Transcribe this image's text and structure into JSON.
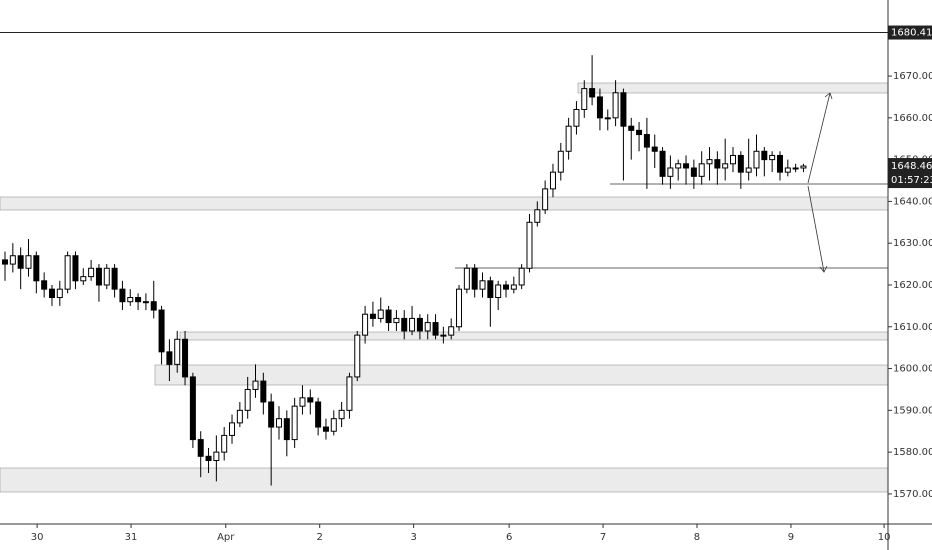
{
  "chart_data": {
    "type": "candlestick",
    "x": [
      0,
      1,
      2,
      3,
      4,
      5,
      6,
      7,
      8,
      9,
      10,
      11,
      12,
      13,
      14,
      15,
      16,
      17,
      18,
      19,
      20,
      21,
      22,
      23,
      24,
      25,
      26,
      27,
      28,
      29,
      30,
      31,
      32,
      33,
      34,
      35,
      36,
      37,
      38,
      39,
      40,
      41,
      42,
      43,
      44,
      45,
      46,
      47,
      48,
      49,
      50,
      51,
      52,
      53,
      54,
      55,
      56,
      57,
      58,
      59,
      60,
      61,
      62,
      63,
      64,
      65,
      66,
      67,
      68,
      69,
      70,
      71,
      72,
      73,
      74,
      75,
      76,
      77,
      78,
      79,
      80,
      81,
      82,
      83,
      84,
      85,
      86,
      87,
      88,
      89,
      90,
      91,
      92,
      93,
      94,
      95,
      96,
      97,
      98,
      99,
      100,
      101,
      102
    ],
    "open": [
      1626,
      1625,
      1627,
      1624,
      1627,
      1621,
      1619,
      1617,
      1619,
      1627,
      1621,
      1622,
      1624,
      1620,
      1624,
      1619,
      1616,
      1617,
      1616,
      1616,
      1614,
      1604,
      1601,
      1607,
      1598,
      1583,
      1579,
      1578,
      1580,
      1584,
      1587,
      1590,
      1595,
      1597,
      1592,
      1586,
      1588,
      1583,
      1591,
      1593,
      1592,
      1586,
      1585,
      1588,
      1590,
      1598,
      1608,
      1613,
      1612,
      1614,
      1611,
      1612,
      1609,
      1612,
      1609,
      1611,
      1608,
      1608,
      1610,
      1619,
      1624,
      1619,
      1621,
      1617,
      1620,
      1619,
      1620,
      1624,
      1635,
      1638,
      1643,
      1647,
      1652,
      1658,
      1662,
      1667,
      1665,
      1660,
      1660,
      1666,
      1658,
      1657,
      1656,
      1653,
      1652,
      1646,
      1648,
      1649,
      1648,
      1646,
      1649,
      1650,
      1648,
      1649,
      1651,
      1647,
      1648,
      1652,
      1650,
      1651,
      1647,
      1648,
      1648
    ],
    "high": [
      1628,
      1630,
      1629,
      1631,
      1628,
      1623,
      1620,
      1621,
      1628,
      1628,
      1624,
      1626,
      1625,
      1625,
      1625,
      1621,
      1619,
      1618,
      1618,
      1621,
      1615,
      1607,
      1609,
      1609,
      1599,
      1585,
      1581,
      1584,
      1586,
      1589,
      1592,
      1598,
      1601,
      1599,
      1594,
      1591,
      1590,
      1593,
      1596,
      1595,
      1593,
      1588,
      1590,
      1592,
      1599,
      1609,
      1615,
      1616,
      1617,
      1615,
      1614,
      1614,
      1615,
      1613,
      1613,
      1613,
      1610,
      1612,
      1620,
      1625,
      1625,
      1623,
      1622,
      1621,
      1621,
      1622,
      1625,
      1637,
      1640,
      1645,
      1649,
      1654,
      1660,
      1664,
      1669,
      1675,
      1667,
      1662,
      1669,
      1667,
      1660,
      1659,
      1660,
      1656,
      1653,
      1651,
      1650,
      1651,
      1650,
      1652,
      1653,
      1652,
      1655,
      1653,
      1652,
      1655,
      1656,
      1653,
      1652,
      1652,
      1650,
      1649,
      1649
    ],
    "low": [
      1621,
      1623,
      1619,
      1622,
      1618,
      1617,
      1615,
      1615,
      1618,
      1619,
      1620,
      1621,
      1616,
      1619,
      1617,
      1614,
      1615,
      1614,
      1614,
      1612,
      1601,
      1597,
      1599,
      1596,
      1581,
      1574,
      1575,
      1573,
      1578,
      1582,
      1586,
      1588,
      1593,
      1589,
      1572,
      1583,
      1579,
      1581,
      1589,
      1589,
      1584,
      1583,
      1584,
      1586,
      1588,
      1597,
      1606,
      1610,
      1611,
      1609,
      1609,
      1607,
      1608,
      1607,
      1607,
      1607,
      1606,
      1607,
      1609,
      1618,
      1617,
      1617,
      1610,
      1614,
      1617,
      1618,
      1619,
      1623,
      1634,
      1637,
      1641,
      1645,
      1650,
      1656,
      1660,
      1663,
      1657,
      1657,
      1658,
      1645,
      1650,
      1652,
      1643,
      1648,
      1644,
      1643,
      1645,
      1644,
      1643,
      1644,
      1645,
      1644,
      1645,
      1647,
      1643,
      1645,
      1646,
      1646,
      1647,
      1645,
      1646,
      1647,
      1647
    ],
    "close": [
      1625,
      1627,
      1624,
      1627,
      1621,
      1619,
      1617,
      1619,
      1627,
      1621,
      1622,
      1624,
      1620,
      1624,
      1619,
      1616,
      1617,
      1616,
      1616,
      1614,
      1604,
      1601,
      1607,
      1598,
      1583,
      1579,
      1578,
      1580,
      1584,
      1587,
      1590,
      1595,
      1597,
      1592,
      1586,
      1588,
      1583,
      1591,
      1593,
      1592,
      1586,
      1585,
      1588,
      1590,
      1598,
      1608,
      1613,
      1612,
      1614,
      1611,
      1612,
      1609,
      1612,
      1609,
      1611,
      1608,
      1608,
      1610,
      1619,
      1624,
      1619,
      1621,
      1617,
      1620,
      1619,
      1620,
      1624,
      1635,
      1638,
      1643,
      1647,
      1652,
      1658,
      1662,
      1667,
      1665,
      1660,
      1660,
      1666,
      1658,
      1657,
      1656,
      1653,
      1652,
      1646,
      1648,
      1649,
      1648,
      1646,
      1649,
      1650,
      1648,
      1649,
      1651,
      1647,
      1648,
      1652,
      1650,
      1651,
      1647,
      1648,
      1648,
      1648.46
    ],
    "up_color": "#ffffff",
    "down_color": "#000000",
    "edge_color": "#000000",
    "xlim": [
      -0.64,
      112.8
    ],
    "xticks": [
      {
        "value": 4.1,
        "label": "30"
      },
      {
        "value": 16.1,
        "label": "31"
      },
      {
        "value": 28.2,
        "label": "Apr"
      },
      {
        "value": 40.2,
        "label": "2"
      },
      {
        "value": 52.2,
        "label": "3"
      },
      {
        "value": 64.4,
        "label": "6"
      },
      {
        "value": 76.4,
        "label": "7"
      },
      {
        "value": 88.4,
        "label": "8"
      },
      {
        "value": 100.4,
        "label": "9"
      },
      {
        "value": 112.3,
        "label": "10"
      }
    ],
    "ylim": [
      1562.8,
      1688.2
    ],
    "yticks": [
      {
        "value": 1570,
        "label": "1570.000"
      },
      {
        "value": 1580,
        "label": "1580.000"
      },
      {
        "value": 1590,
        "label": "1590.000"
      },
      {
        "value": 1600,
        "label": "1600.000"
      },
      {
        "value": 1610,
        "label": "1610.000"
      },
      {
        "value": 1620,
        "label": "1620.000"
      },
      {
        "value": 1630,
        "label": "1630.000"
      },
      {
        "value": 1640,
        "label": "1640.000"
      },
      {
        "value": 1650,
        "label": "1650.000"
      },
      {
        "value": 1660,
        "label": "1660.000"
      },
      {
        "value": 1670,
        "label": "1670.000"
      }
    ],
    "reference_line": 1680.415,
    "price_label": {
      "value": 1648.46,
      "label": "1648.460"
    },
    "countdown": "01:57:23"
  }
}
